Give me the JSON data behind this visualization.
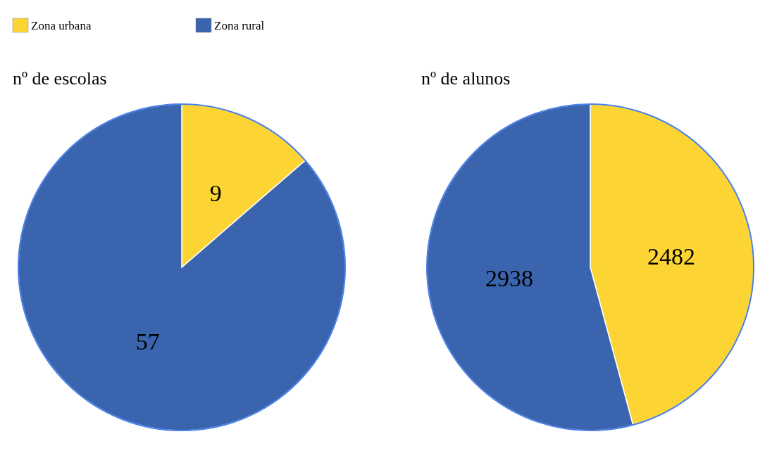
{
  "chart_data": [
    {
      "type": "pie",
      "title": "nº de escolas",
      "categories": [
        "Zona urbana",
        "Zona rural"
      ],
      "values": [
        9,
        57
      ],
      "colors": [
        "#fcd535",
        "#3a64ad"
      ],
      "data_labels": true,
      "legend": "top left"
    },
    {
      "type": "pie",
      "title": "nº de alunos",
      "categories": [
        null,
        null
      ],
      "values": [
        2482,
        2938
      ],
      "colors": [
        "#fcd535",
        "#3a64ad"
      ],
      "data_labels": true
    }
  ]
}
